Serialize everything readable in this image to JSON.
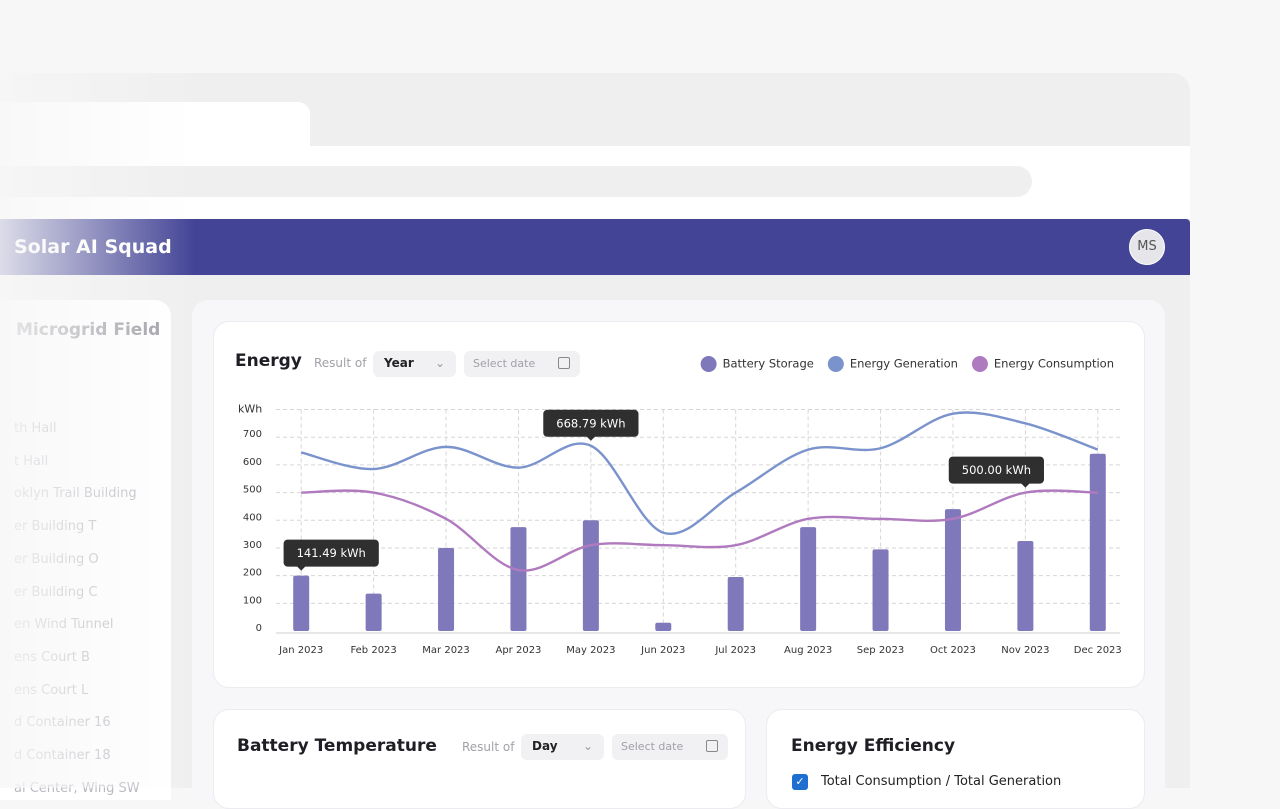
{
  "header": {
    "title": "Solar AI Squad",
    "avatar": "MS"
  },
  "sidebar": {
    "title": "Microgrid Field",
    "items": [
      "th Hall",
      "t Hall",
      "oklyn Trail Building",
      "er Building T",
      "er Building O",
      "er Building C",
      "en Wind Tunnel",
      "ens Court B",
      "ens Court L",
      "d Container 16",
      "d Container 18",
      "al Center, Wing SW"
    ]
  },
  "energy": {
    "title": "Energy",
    "result_of": "Result of",
    "period": "Year",
    "date_placeholder": "Select date"
  },
  "chart_data": {
    "type": "bar_line",
    "y_label": "kWh",
    "categories": [
      "Jan 2023",
      "Feb 2023",
      "Mar 2023",
      "Apr 2023",
      "May 2023",
      "Jun 2023",
      "Jul 2023",
      "Aug 2023",
      "Sep 2023",
      "Oct 2023",
      "Nov 2023",
      "Dec 2023"
    ],
    "series": [
      {
        "name": "Battery Storage",
        "type": "bar",
        "color": "#7f78bb",
        "values": [
          200,
          135,
          300,
          375,
          400,
          30,
          195,
          375,
          295,
          440,
          325,
          640
        ]
      },
      {
        "name": "Energy Generation",
        "type": "line",
        "color": "#7b93cc",
        "values": [
          645,
          585,
          665,
          590,
          669,
          355,
          500,
          655,
          660,
          785,
          750,
          655
        ]
      },
      {
        "name": "Energy Consumption",
        "type": "line",
        "color": "#b07abf",
        "values": [
          500,
          500,
          405,
          220,
          310,
          310,
          310,
          405,
          405,
          405,
          500,
          500
        ]
      }
    ],
    "ylim": [
      0,
      800
    ],
    "yticks": [
      0,
      100,
      200,
      300,
      400,
      500,
      600,
      700
    ],
    "grid": true,
    "annotations": [
      "668.79 kWh",
      "500.00 kWh",
      "141.49 kWh"
    ]
  },
  "battery_temperature": {
    "title": "Battery Temperature",
    "result_of": "Result of",
    "period": "Day",
    "date_placeholder": "Select date"
  },
  "energy_efficiency": {
    "title": "Energy Efficiency",
    "option": "Total Consumption / Total Generation"
  }
}
